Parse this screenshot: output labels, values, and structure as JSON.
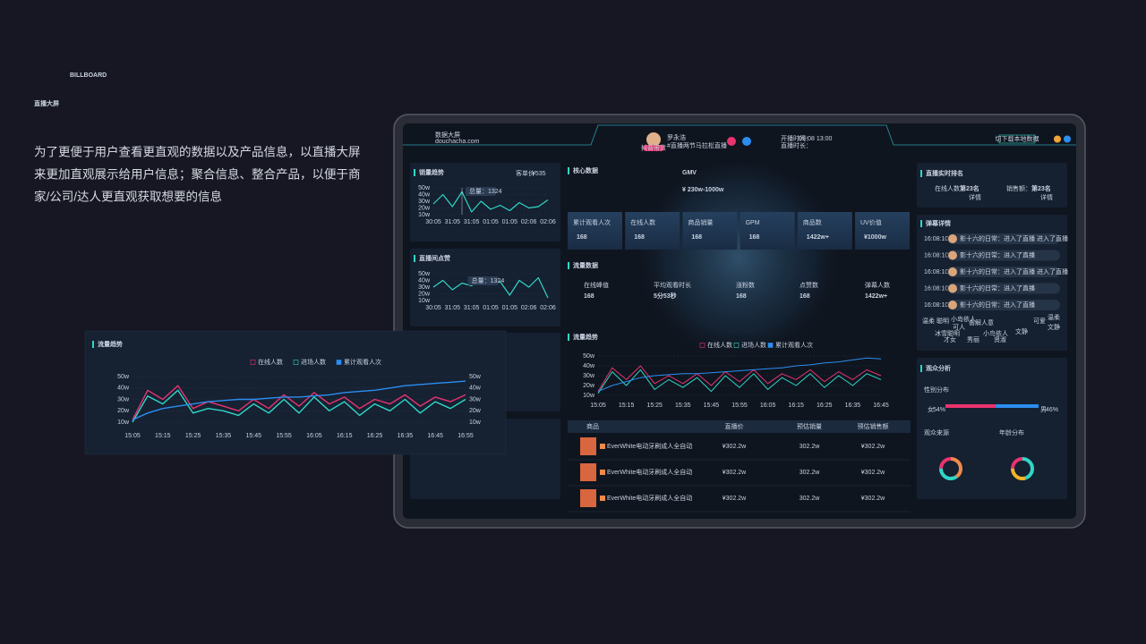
{
  "hero": {
    "watermark": "BILLBOARD",
    "title": "直播大屏",
    "description": [
      "为了更便于用户查看更直观的数据以及产品信息，以直播大屏",
      "来更加直观展示给用户信息；聚合信息、整合产品，以便于商",
      "家/公司/达人更直观获取想要的信息"
    ]
  },
  "header": {
    "brand": "数据大屏",
    "site": "douchacha.com",
    "host": "罗永浩",
    "topic": "#直播两节马拉松直播",
    "badge": "抖音带货",
    "start_label": "开播时间：",
    "start_value": "09-08 13:00",
    "duration_label": "直播时长：",
    "button": "切下载本地数据"
  },
  "sales_trend": {
    "type": "line",
    "title": "销量趋势",
    "price_label": "客单价",
    "price_value": "¥535",
    "annotation": "总量：1324",
    "categories": [
      "30:05",
      null,
      "31:05",
      null,
      "31:05",
      null,
      "01:05",
      null,
      "01:05",
      null,
      "02:06",
      null,
      "02:06"
    ],
    "ylim": [
      10,
      50
    ],
    "yticks": [
      {
        "value": 50,
        "label": "50w"
      },
      {
        "value": 40,
        "label": "40w"
      },
      {
        "value": 30,
        "label": "30w"
      },
      {
        "value": 20,
        "label": "20w"
      },
      {
        "value": 10,
        "label": "10w"
      }
    ],
    "series": [
      {
        "color": "#2fd7c7",
        "values": [
          26,
          40,
          22,
          44,
          14,
          30,
          18,
          24,
          16,
          28,
          20,
          22,
          32
        ]
      }
    ]
  },
  "likes": {
    "type": "line",
    "title": "直播间点赞",
    "annotation": "总量：1324",
    "categories": [
      "30:05",
      null,
      "31:05",
      null,
      "31:05",
      null,
      "01:05",
      null,
      "01:05",
      null,
      "02:06",
      null,
      "02:06"
    ],
    "ylim": [
      10,
      50
    ],
    "yticks": [
      {
        "value": 50,
        "label": "50w"
      },
      {
        "value": 40,
        "label": "40w"
      },
      {
        "value": 30,
        "label": "30w"
      },
      {
        "value": 20,
        "label": "20w"
      },
      {
        "value": 10,
        "label": "10w"
      }
    ],
    "series": [
      {
        "color": "#2fd7c7",
        "values": [
          30,
          40,
          26,
          36,
          32,
          42,
          34,
          38,
          18,
          40,
          30,
          44,
          14
        ]
      }
    ]
  },
  "core": {
    "title": "核心数据",
    "gmv_label": "GMV",
    "gmv_value": "¥ 230w-1000w",
    "metrics": [
      {
        "label": "累计观看人次",
        "value": "168"
      },
      {
        "label": "在线人数",
        "value": "168"
      },
      {
        "label": "商品销量",
        "value": "168"
      },
      {
        "label": "GPM",
        "value": "168"
      },
      {
        "label": "商品数",
        "value": "1422w+"
      },
      {
        "label": "UV价值",
        "value": "¥1000w"
      }
    ]
  },
  "traffic_data": {
    "title": "流量数据",
    "metrics": [
      {
        "label": "在线峰值",
        "value": "168"
      },
      {
        "label": "平均观看时长",
        "value": "5分53秒"
      },
      {
        "label": "涨粉数",
        "value": "168"
      },
      {
        "label": "点赞数",
        "value": "168"
      },
      {
        "label": "弹幕人数",
        "value": "1422w+"
      }
    ]
  },
  "traffic_trend": {
    "type": "line",
    "title": "流量趋势",
    "categories": [
      "15:05",
      null,
      "15:15",
      null,
      "15:25",
      null,
      "15:35",
      null,
      "15:45",
      null,
      "15:55",
      null,
      "16:05",
      null,
      "16:15",
      null,
      "16:25",
      null,
      "16:35",
      null,
      "16:45"
    ],
    "ylim": [
      10,
      50
    ],
    "yticks": [
      {
        "value": 50,
        "label": "50w"
      },
      {
        "value": 40,
        "label": "40w"
      },
      {
        "value": 30,
        "label": "30w"
      },
      {
        "value": 20,
        "label": "20w"
      },
      {
        "value": 10,
        "label": "10w"
      }
    ],
    "series": [
      {
        "name": "在线人数",
        "color": "#e8336f",
        "values": [
          14,
          38,
          26,
          40,
          22,
          30,
          22,
          32,
          20,
          34,
          24,
          36,
          22,
          32,
          26,
          36,
          24,
          34,
          26,
          36,
          30
        ]
      },
      {
        "name": "进场人数",
        "color": "#2fd7c7",
        "values": [
          12,
          34,
          20,
          36,
          16,
          26,
          18,
          28,
          14,
          30,
          18,
          32,
          16,
          28,
          20,
          32,
          18,
          30,
          20,
          32,
          26
        ]
      },
      {
        "name": "累计观看人次",
        "color": "#2b8ef0",
        "values": [
          14,
          20,
          24,
          28,
          30,
          31,
          32,
          32,
          33,
          34,
          35,
          36,
          37,
          38,
          40,
          41,
          43,
          44,
          46,
          48,
          47
        ]
      }
    ]
  },
  "products": {
    "headers": [
      "商品",
      "直播价",
      "预估销量",
      "预估销售额"
    ],
    "rows": [
      [
        "EverWhite电动牙刷成人全自动",
        "¥302.2w",
        "302.2w",
        "¥302.2w"
      ],
      [
        "EverWhite电动牙刷成人全自动",
        "¥302.2w",
        "302.2w",
        "¥302.2w"
      ],
      [
        "EverWhite电动牙刷成人全自动",
        "¥302.2w",
        "302.2w",
        "¥302.2w"
      ]
    ]
  },
  "ranking": {
    "title": "直播实时排名",
    "items": [
      {
        "label": "在线人数：",
        "value": "第23名",
        "link": "详情"
      },
      {
        "label": "销售额：",
        "value": "第23名",
        "link": "详情"
      }
    ]
  },
  "danmaku": {
    "title": "弹幕详情",
    "rows": [
      {
        "time": "16:08:10",
        "text": "影十六的日常：进入了直播 进入了直播"
      },
      {
        "time": "16:08:10",
        "text": "影十六的日常：进入了直播"
      },
      {
        "time": "16:08:10",
        "text": "影十六的日常：进入了直播 进入了直播"
      },
      {
        "time": "16:08:10",
        "text": "影十六的日常：进入了直播"
      },
      {
        "time": "16:08:10",
        "text": "影十六的日常：进入了直播"
      }
    ],
    "words": [
      {
        "text": "温柔",
        "color": "#e8336f"
      },
      {
        "text": "聪明",
        "color": "#e8336f"
      },
      {
        "text": "小岛依人",
        "color": "#f0b429"
      },
      {
        "text": "善解人意",
        "color": "#f0b429"
      },
      {
        "text": "可爱",
        "color": "#2fd7c7"
      },
      {
        "text": "温柔",
        "color": "#2fd7c7"
      },
      {
        "text": "可人",
        "color": "#f0b429"
      },
      {
        "text": "冰雪聪明",
        "color": "#2fd7c7"
      },
      {
        "text": "小鸟依人",
        "color": "#2fd7c7"
      },
      {
        "text": "文静",
        "color": "#f0b429"
      },
      {
        "text": "才女",
        "color": "#f0b429"
      },
      {
        "text": "秀丽",
        "color": "#2fd7c7"
      },
      {
        "text": "贤淑",
        "color": "#e8336f"
      },
      {
        "text": "文静",
        "color": "#e8336f"
      }
    ]
  },
  "audience": {
    "title": "观众分析",
    "gender_title": "性别分布",
    "gender": {
      "categories": [
        "女",
        "男"
      ],
      "values": [
        54,
        46
      ],
      "value_labels": [
        "54%",
        "46%"
      ],
      "colors": [
        "#e8336f",
        "#2b8ef0"
      ]
    },
    "source_title": "观众来源",
    "age_title": "年龄分布",
    "donuts": [
      {
        "values": [
          40,
          35,
          25
        ],
        "colors": [
          "#f08a4b",
          "#2fd7c7",
          "#e8336f"
        ]
      },
      {
        "values": [
          45,
          30,
          25
        ],
        "colors": [
          "#2fd7c7",
          "#f0b429",
          "#e8336f"
        ]
      }
    ]
  },
  "float_trend": {
    "type": "line",
    "title": "流量趋势",
    "categories": [
      "15:05",
      null,
      "15:15",
      null,
      "15:25",
      null,
      "15:35",
      null,
      "15:45",
      null,
      "15:55",
      null,
      "16:05",
      null,
      "16:15",
      null,
      "16:25",
      null,
      "16:35",
      null,
      "16:45",
      null,
      "16:55"
    ],
    "ylim": [
      10,
      50
    ],
    "yticks": [
      {
        "value": 50,
        "label": "50w"
      },
      {
        "value": 40,
        "label": "40w"
      },
      {
        "value": 30,
        "label": "30w"
      },
      {
        "value": 20,
        "label": "20w"
      },
      {
        "value": 10,
        "label": "10w"
      }
    ],
    "y2ticks": [
      {
        "value": 50,
        "label": "50w"
      },
      {
        "value": 40,
        "label": "40w"
      },
      {
        "value": 30,
        "label": "30w"
      },
      {
        "value": 20,
        "label": "20w"
      },
      {
        "value": 10,
        "label": "10w"
      }
    ],
    "series": [
      {
        "name": "在线人数",
        "color": "#e8336f",
        "values": [
          12,
          38,
          30,
          42,
          22,
          28,
          24,
          20,
          30,
          22,
          34,
          24,
          36,
          26,
          32,
          22,
          30,
          26,
          34,
          24,
          32,
          28,
          34
        ]
      },
      {
        "name": "进场人数",
        "color": "#2fd7c7",
        "values": [
          10,
          33,
          26,
          38,
          18,
          22,
          20,
          16,
          26,
          18,
          30,
          18,
          32,
          20,
          28,
          16,
          26,
          20,
          30,
          18,
          28,
          22,
          30
        ]
      },
      {
        "name": "累计观看人次",
        "color": "#2b8ef0",
        "values": [
          12,
          18,
          22,
          24,
          26,
          28,
          29,
          30,
          30,
          31,
          32,
          32,
          33,
          34,
          36,
          37,
          38,
          40,
          42,
          43,
          44,
          45,
          46
        ]
      }
    ]
  }
}
